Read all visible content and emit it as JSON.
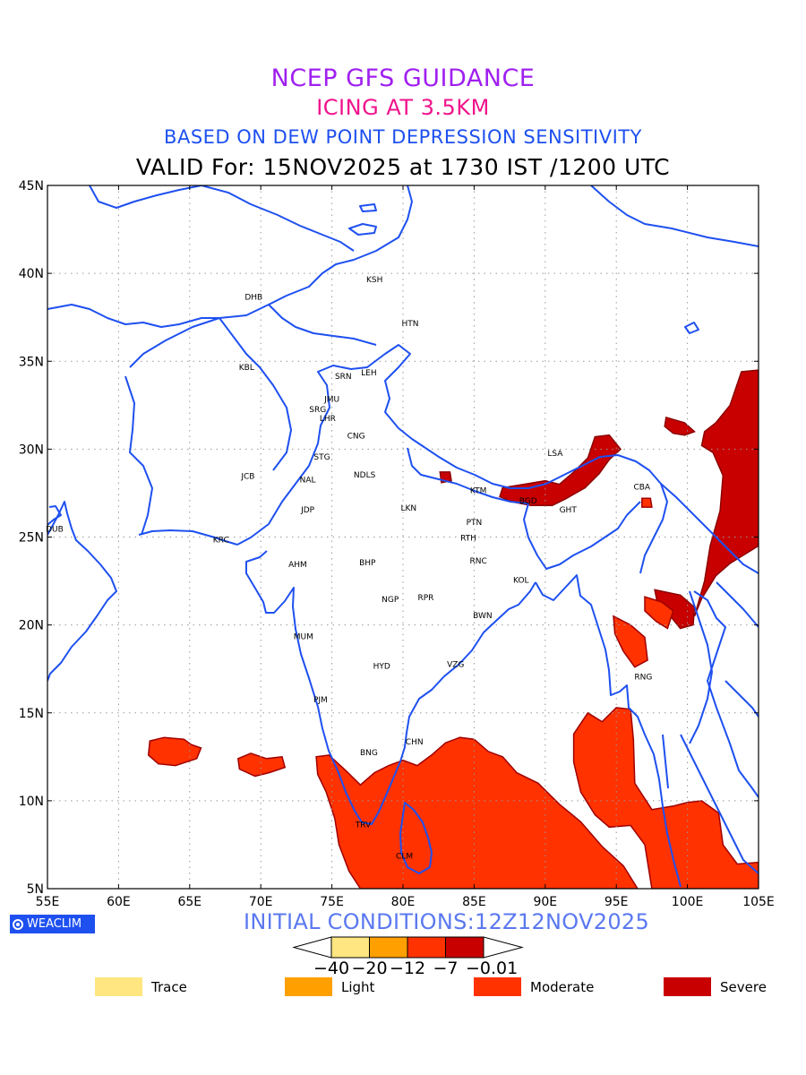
{
  "header": {
    "title": "NCEP GFS GUIDANCE",
    "subtitle": "ICING AT 3.5KM",
    "method": "BASED ON DEW POINT DEPRESSION SENSITIVITY",
    "valid": "VALID For: 15NOV2025 at 1730 IST /1200 UTC"
  },
  "axes": {
    "lon_labels": [
      "55E",
      "60E",
      "65E",
      "70E",
      "75E",
      "80E",
      "85E",
      "90E",
      "95E",
      "100E",
      "105E"
    ],
    "lat_labels": [
      "5N",
      "10N",
      "15N",
      "20N",
      "25N",
      "30N",
      "35N",
      "40N",
      "45N"
    ],
    "lon_range": [
      55,
      105
    ],
    "lat_range": [
      5,
      45
    ],
    "grid": "dotted"
  },
  "stations": [
    {
      "code": "KSH",
      "lon": 78.0,
      "lat": 39.5
    },
    {
      "code": "DHB",
      "lon": 69.5,
      "lat": 38.5
    },
    {
      "code": "HTN",
      "lon": 80.5,
      "lat": 37.0
    },
    {
      "code": "KBL",
      "lon": 69.0,
      "lat": 34.5
    },
    {
      "code": "SRN",
      "lon": 75.8,
      "lat": 34.0
    },
    {
      "code": "LEH",
      "lon": 77.6,
      "lat": 34.2
    },
    {
      "code": "JMU",
      "lon": 75.0,
      "lat": 32.7
    },
    {
      "code": "SRG",
      "lon": 74.0,
      "lat": 32.1
    },
    {
      "code": "LHR",
      "lon": 74.7,
      "lat": 31.6
    },
    {
      "code": "CNG",
      "lon": 76.7,
      "lat": 30.6
    },
    {
      "code": "STG",
      "lon": 74.3,
      "lat": 29.4
    },
    {
      "code": "LSA",
      "lon": 90.7,
      "lat": 29.6
    },
    {
      "code": "JCB",
      "lon": 69.1,
      "lat": 28.3
    },
    {
      "code": "NAL",
      "lon": 73.3,
      "lat": 28.1
    },
    {
      "code": "NDLS",
      "lon": 77.3,
      "lat": 28.4
    },
    {
      "code": "CBA",
      "lon": 96.8,
      "lat": 27.7
    },
    {
      "code": "KTM",
      "lon": 85.3,
      "lat": 27.5
    },
    {
      "code": "BGD",
      "lon": 88.8,
      "lat": 26.9
    },
    {
      "code": "GHT",
      "lon": 91.6,
      "lat": 26.4
    },
    {
      "code": "JDP",
      "lon": 73.3,
      "lat": 26.4
    },
    {
      "code": "LKN",
      "lon": 80.4,
      "lat": 26.5
    },
    {
      "code": "PTN",
      "lon": 85.0,
      "lat": 25.7
    },
    {
      "code": "DUB",
      "lon": 55.5,
      "lat": 25.3
    },
    {
      "code": "RTH",
      "lon": 84.6,
      "lat": 24.8
    },
    {
      "code": "KRC",
      "lon": 67.2,
      "lat": 24.7
    },
    {
      "code": "RNC",
      "lon": 85.3,
      "lat": 23.5
    },
    {
      "code": "BHP",
      "lon": 77.5,
      "lat": 23.4
    },
    {
      "code": "AHM",
      "lon": 72.6,
      "lat": 23.3
    },
    {
      "code": "KOL",
      "lon": 88.3,
      "lat": 22.4
    },
    {
      "code": "NGP",
      "lon": 79.1,
      "lat": 21.3
    },
    {
      "code": "RPR",
      "lon": 81.6,
      "lat": 21.4
    },
    {
      "code": "BWN",
      "lon": 85.6,
      "lat": 20.4
    },
    {
      "code": "MUM",
      "lon": 73.0,
      "lat": 19.2
    },
    {
      "code": "VZG",
      "lon": 83.7,
      "lat": 17.6
    },
    {
      "code": "HYD",
      "lon": 78.5,
      "lat": 17.5
    },
    {
      "code": "RNG",
      "lon": 96.9,
      "lat": 16.9
    },
    {
      "code": "PJM",
      "lon": 74.2,
      "lat": 15.6
    },
    {
      "code": "CHN",
      "lon": 80.8,
      "lat": 13.2
    },
    {
      "code": "BNG",
      "lon": 77.6,
      "lat": 12.6
    },
    {
      "code": "TRV",
      "lon": 77.2,
      "lat": 8.5
    },
    {
      "code": "CLM",
      "lon": 80.1,
      "lat": 6.7
    }
  ],
  "icing_areas": [
    {
      "category": "Moderate",
      "name": "arabian-sea-patch",
      "polygon": [
        [
          62.2,
          13.4
        ],
        [
          63.2,
          13.6
        ],
        [
          64.6,
          13.5
        ],
        [
          65.1,
          13.2
        ],
        [
          65.8,
          13.0
        ],
        [
          65.5,
          12.4
        ],
        [
          64.0,
          12.0
        ],
        [
          62.8,
          12.1
        ],
        [
          62.1,
          12.6
        ]
      ]
    },
    {
      "category": "Moderate",
      "name": "arabian-sea-patch-2",
      "polygon": [
        [
          68.4,
          12.4
        ],
        [
          69.3,
          12.7
        ],
        [
          70.4,
          12.4
        ],
        [
          71.5,
          12.5
        ],
        [
          71.7,
          11.9
        ],
        [
          70.6,
          11.6
        ],
        [
          69.6,
          11.4
        ],
        [
          68.5,
          11.8
        ]
      ]
    },
    {
      "category": "Moderate",
      "name": "south-peninsula-bay",
      "polygon": [
        [
          73.9,
          12.5
        ],
        [
          74.8,
          12.6
        ],
        [
          76.0,
          11.7
        ],
        [
          77.0,
          10.9
        ],
        [
          78.0,
          11.6
        ],
        [
          79.0,
          12.0
        ],
        [
          80.0,
          12.3
        ],
        [
          81.0,
          12.0
        ],
        [
          82.0,
          12.6
        ],
        [
          83.0,
          13.3
        ],
        [
          84.0,
          13.6
        ],
        [
          85.0,
          13.5
        ],
        [
          86.0,
          12.8
        ],
        [
          87.0,
          12.5
        ],
        [
          88.0,
          11.6
        ],
        [
          89.5,
          11.0
        ],
        [
          91.0,
          9.8
        ],
        [
          92.5,
          8.8
        ],
        [
          94.0,
          7.4
        ],
        [
          95.5,
          6.3
        ],
        [
          96.5,
          5.0
        ],
        [
          77.0,
          5.0
        ],
        [
          76.2,
          6.0
        ],
        [
          75.5,
          7.5
        ],
        [
          75.2,
          9.0
        ],
        [
          74.6,
          10.5
        ],
        [
          74.0,
          11.5
        ]
      ]
    },
    {
      "category": "Moderate",
      "name": "andaman-sea",
      "polygon": [
        [
          92.0,
          13.8
        ],
        [
          93.0,
          15.0
        ],
        [
          94.0,
          14.5
        ],
        [
          95.0,
          15.3
        ],
        [
          96.0,
          15.2
        ],
        [
          96.2,
          13.5
        ],
        [
          96.3,
          11.0
        ],
        [
          97.5,
          9.5
        ],
        [
          99.0,
          9.7
        ],
        [
          100.0,
          9.9
        ],
        [
          101.0,
          10.0
        ],
        [
          102.2,
          9.3
        ],
        [
          102.5,
          7.5
        ],
        [
          103.5,
          6.4
        ],
        [
          105.0,
          6.5
        ],
        [
          105.0,
          5.0
        ],
        [
          97.5,
          5.0
        ],
        [
          97.0,
          7.5
        ],
        [
          96.0,
          8.6
        ],
        [
          94.5,
          8.5
        ],
        [
          93.5,
          9.2
        ],
        [
          92.5,
          10.5
        ],
        [
          92.0,
          12.2
        ]
      ]
    },
    {
      "category": "Severe",
      "name": "myanmar-china-border",
      "polygon": [
        [
          101.2,
          31.0
        ],
        [
          102.0,
          31.5
        ],
        [
          103.0,
          32.5
        ],
        [
          103.8,
          34.4
        ],
        [
          105.0,
          34.5
        ],
        [
          105.0,
          24.5
        ],
        [
          104.0,
          24.0
        ],
        [
          103.0,
          23.5
        ],
        [
          102.0,
          22.8
        ],
        [
          101.0,
          21.5
        ],
        [
          100.5,
          20.5
        ],
        [
          101.2,
          22.5
        ],
        [
          101.6,
          24.5
        ],
        [
          102.3,
          26.5
        ],
        [
          102.5,
          28.5
        ],
        [
          101.8,
          29.8
        ],
        [
          101.0,
          30.2
        ]
      ]
    },
    {
      "category": "Severe",
      "name": "tibet-patch",
      "polygon": [
        [
          98.5,
          31.8
        ],
        [
          99.8,
          31.5
        ],
        [
          100.5,
          31.0
        ],
        [
          99.8,
          30.8
        ],
        [
          99.0,
          30.9
        ],
        [
          98.4,
          31.3
        ]
      ]
    },
    {
      "category": "Severe",
      "name": "north-myanmar",
      "polygon": [
        [
          97.7,
          22.0
        ],
        [
          99.5,
          21.7
        ],
        [
          100.5,
          21.0
        ],
        [
          100.4,
          20.0
        ],
        [
          99.5,
          19.8
        ],
        [
          98.8,
          20.5
        ],
        [
          98.0,
          20.8
        ]
      ]
    },
    {
      "category": "Severe",
      "name": "himalaya-band",
      "polygon": [
        [
          87.0,
          27.8
        ],
        [
          88.5,
          28.0
        ],
        [
          90.0,
          28.2
        ],
        [
          91.0,
          28.0
        ],
        [
          92.0,
          28.7
        ],
        [
          93.0,
          29.5
        ],
        [
          93.5,
          30.7
        ],
        [
          94.5,
          30.8
        ],
        [
          95.3,
          30.0
        ],
        [
          94.5,
          29.4
        ],
        [
          93.8,
          28.6
        ],
        [
          92.8,
          27.8
        ],
        [
          91.5,
          27.2
        ],
        [
          90.5,
          26.8
        ],
        [
          89.0,
          26.8
        ],
        [
          87.7,
          27.0
        ],
        [
          86.8,
          27.3
        ]
      ]
    },
    {
      "category": "Severe",
      "name": "nepal-dot",
      "polygon": [
        [
          82.6,
          28.7
        ],
        [
          83.3,
          28.7
        ],
        [
          83.4,
          28.2
        ],
        [
          82.7,
          28.1
        ]
      ]
    },
    {
      "category": "Moderate",
      "name": "myanmar-arakan",
      "polygon": [
        [
          94.8,
          20.5
        ],
        [
          96.0,
          20.0
        ],
        [
          97.0,
          19.3
        ],
        [
          97.2,
          18.0
        ],
        [
          96.3,
          17.6
        ],
        [
          95.5,
          18.5
        ],
        [
          94.9,
          19.5
        ]
      ]
    },
    {
      "category": "Moderate",
      "name": "myanmar-central",
      "polygon": [
        [
          97.0,
          21.6
        ],
        [
          98.2,
          21.3
        ],
        [
          99.0,
          20.8
        ],
        [
          98.6,
          19.8
        ],
        [
          97.8,
          20.2
        ],
        [
          97.0,
          20.8
        ]
      ]
    },
    {
      "category": "Moderate",
      "name": "arunachal-dot",
      "polygon": [
        [
          96.8,
          27.2
        ],
        [
          97.4,
          27.2
        ],
        [
          97.5,
          26.7
        ],
        [
          96.8,
          26.7
        ]
      ]
    }
  ],
  "colors": {
    "Trace": "#ffe680",
    "Light": "#ffa000",
    "Moderate": "#ff3200",
    "Severe": "#c80000",
    "coast": "#1e50f0"
  },
  "footer": {
    "logo": "WEACLIM",
    "initial": "INITIAL CONDITIONS:12Z12NOV2025"
  },
  "colorbar": {
    "labels": [
      "-40",
      "-20",
      "-12",
      "-7",
      "-0.01"
    ]
  },
  "legend": [
    {
      "label": "Trace",
      "color": "#ffe680"
    },
    {
      "label": "Light",
      "color": "#ffa000"
    },
    {
      "label": "Moderate",
      "color": "#ff3200"
    },
    {
      "label": "Severe",
      "color": "#c80000"
    }
  ]
}
